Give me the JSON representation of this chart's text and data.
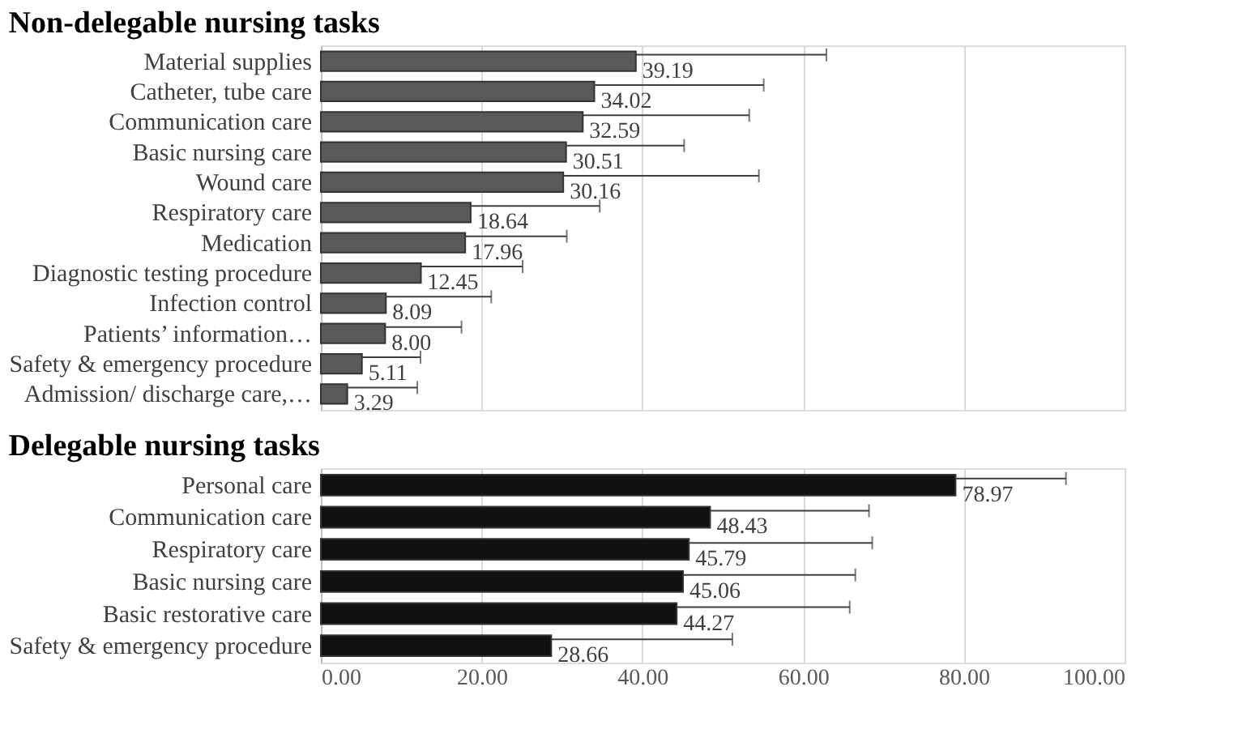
{
  "chart_data": [
    {
      "type": "bar",
      "orientation": "horizontal",
      "title": "Non-delegable nursing tasks",
      "categories": [
        "Material supplies",
        "Catheter, tube care",
        "Communication care",
        "Basic nursing care",
        "Wound care",
        "Respiratory care",
        "Medication",
        "Diagnostic testing procedure",
        "Infection control",
        "Patients’ information…",
        "Safety & emergency procedure",
        "Admission/ discharge care,…"
      ],
      "values": [
        39.19,
        34.02,
        32.59,
        30.51,
        30.16,
        18.64,
        17.96,
        12.45,
        8.09,
        8.0,
        5.11,
        3.29
      ],
      "value_labels": [
        "39.19",
        "34.02",
        "32.59",
        "30.51",
        "30.16",
        "18.64",
        "17.96",
        "12.45",
        "8.09",
        "8.00",
        "5.11",
        "3.29"
      ],
      "errors": [
        [
          39.19,
          62.9
        ],
        [
          34.02,
          55.1
        ],
        [
          32.59,
          53.3
        ],
        [
          30.51,
          45.2
        ],
        [
          30.16,
          54.5
        ],
        [
          18.64,
          34.7
        ],
        [
          17.96,
          30.6
        ],
        [
          12.45,
          25.1
        ],
        [
          8.09,
          21.2
        ],
        [
          8.0,
          17.5
        ],
        [
          5.11,
          12.4
        ],
        [
          3.29,
          12.0
        ]
      ],
      "color": "#595959",
      "xlim": [
        0,
        100
      ],
      "xticks": [
        0,
        20,
        40,
        60,
        80,
        100
      ],
      "grid": "x",
      "tick_labels": "y"
    },
    {
      "type": "bar",
      "orientation": "horizontal",
      "title": "Delegable nursing tasks",
      "categories": [
        "Personal care",
        "Communication care",
        "Respiratory care",
        "Basic nursing care",
        "Basic restorative care",
        "Safety & emergency procedure"
      ],
      "values": [
        78.97,
        48.43,
        45.79,
        45.06,
        44.27,
        28.66
      ],
      "value_labels": [
        "78.97",
        "48.43",
        "45.79",
        "45.06",
        "44.27",
        "28.66"
      ],
      "errors": [
        [
          78.97,
          92.7
        ],
        [
          48.43,
          68.2
        ],
        [
          45.79,
          68.6
        ],
        [
          45.06,
          66.5
        ],
        [
          44.27,
          65.8
        ],
        [
          28.66,
          51.2
        ]
      ],
      "color": "#111111",
      "xlim": [
        0,
        100
      ],
      "xticks": [
        {
          "value": 0,
          "label": "0.00"
        },
        {
          "value": 20,
          "label": "20.00"
        },
        {
          "value": 40,
          "label": "40.00"
        },
        {
          "value": 60,
          "label": "60.00"
        },
        {
          "value": 80,
          "label": "80.00"
        },
        {
          "value": 100,
          "label": "100.00"
        }
      ],
      "grid": "x"
    }
  ]
}
